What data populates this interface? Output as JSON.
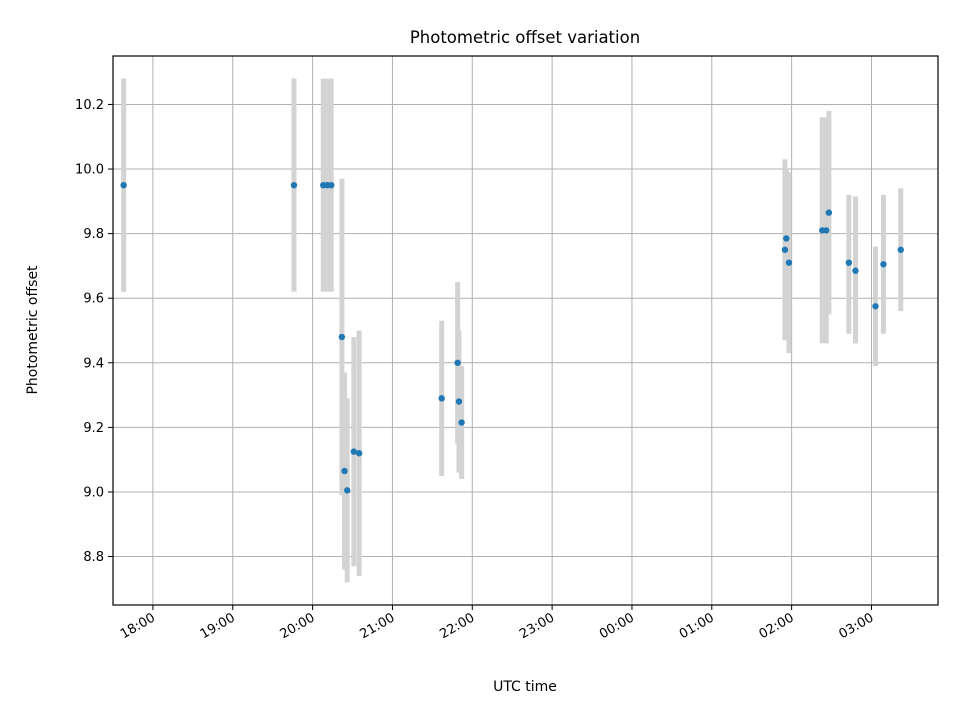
{
  "chart_data": {
    "type": "scatter",
    "title": "Photometric offset variation",
    "xlabel": "UTC time",
    "ylabel": "Photometric offset",
    "xlim": [
      "17:30",
      "03:50"
    ],
    "ylim": [
      8.65,
      10.35
    ],
    "grid": true,
    "x_ticks": [
      "18:00",
      "19:00",
      "20:00",
      "21:00",
      "22:00",
      "23:00",
      "00:00",
      "01:00",
      "02:00",
      "03:00"
    ],
    "y_ticks": [
      8.8,
      9.0,
      9.2,
      9.4,
      9.6,
      9.8,
      10.0,
      10.2
    ],
    "errorbar_color": "#d3d3d3",
    "marker_color": "#1f77b4",
    "points": [
      {
        "x": "17:38",
        "y": 9.95,
        "ylow": 9.62,
        "yhigh": 10.28
      },
      {
        "x": "19:46",
        "y": 9.95,
        "ylow": 9.62,
        "yhigh": 10.28
      },
      {
        "x": "20:08",
        "y": 9.95,
        "ylow": 9.62,
        "yhigh": 10.28
      },
      {
        "x": "20:11",
        "y": 9.95,
        "ylow": 9.62,
        "yhigh": 10.28
      },
      {
        "x": "20:14",
        "y": 9.95,
        "ylow": 9.62,
        "yhigh": 10.28
      },
      {
        "x": "20:22",
        "y": 9.48,
        "ylow": 8.99,
        "yhigh": 9.97
      },
      {
        "x": "20:24",
        "y": 9.065,
        "ylow": 8.76,
        "yhigh": 9.37
      },
      {
        "x": "20:26",
        "y": 9.005,
        "ylow": 8.72,
        "yhigh": 9.29
      },
      {
        "x": "20:31",
        "y": 9.125,
        "ylow": 8.77,
        "yhigh": 9.48
      },
      {
        "x": "20:35",
        "y": 9.12,
        "ylow": 8.74,
        "yhigh": 9.5
      },
      {
        "x": "21:37",
        "y": 9.29,
        "ylow": 9.05,
        "yhigh": 9.53
      },
      {
        "x": "21:49",
        "y": 9.4,
        "ylow": 9.15,
        "yhigh": 9.65
      },
      {
        "x": "21:50",
        "y": 9.28,
        "ylow": 9.06,
        "yhigh": 9.5
      },
      {
        "x": "21:52",
        "y": 9.215,
        "ylow": 9.04,
        "yhigh": 9.39
      },
      {
        "x": "01:55",
        "y": 9.75,
        "ylow": 9.47,
        "yhigh": 10.03
      },
      {
        "x": "01:56",
        "y": 9.785,
        "ylow": 9.57,
        "yhigh": 10.0
      },
      {
        "x": "01:58",
        "y": 9.71,
        "ylow": 9.43,
        "yhigh": 9.99
      },
      {
        "x": "02:23",
        "y": 9.81,
        "ylow": 9.46,
        "yhigh": 10.16
      },
      {
        "x": "02:26",
        "y": 9.81,
        "ylow": 9.46,
        "yhigh": 10.16
      },
      {
        "x": "02:28",
        "y": 9.865,
        "ylow": 9.55,
        "yhigh": 10.18
      },
      {
        "x": "02:43",
        "y": 9.71,
        "ylow": 9.49,
        "yhigh": 9.92
      },
      {
        "x": "02:48",
        "y": 9.685,
        "ylow": 9.46,
        "yhigh": 9.915
      },
      {
        "x": "03:03",
        "y": 9.575,
        "ylow": 9.39,
        "yhigh": 9.76
      },
      {
        "x": "03:09",
        "y": 9.705,
        "ylow": 9.49,
        "yhigh": 9.92
      },
      {
        "x": "03:22",
        "y": 9.75,
        "ylow": 9.56,
        "yhigh": 9.94
      }
    ]
  }
}
